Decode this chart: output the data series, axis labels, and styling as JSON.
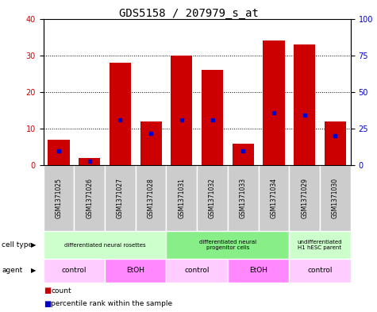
{
  "title": "GDS5158 / 207979_s_at",
  "samples": [
    "GSM1371025",
    "GSM1371026",
    "GSM1371027",
    "GSM1371028",
    "GSM1371031",
    "GSM1371032",
    "GSM1371033",
    "GSM1371034",
    "GSM1371029",
    "GSM1371030"
  ],
  "counts": [
    7,
    2,
    28,
    12,
    30,
    26,
    6,
    34,
    33,
    12
  ],
  "percentile_ranks": [
    10,
    3,
    31,
    22,
    31,
    31,
    10,
    36,
    34,
    20
  ],
  "ylim_left": [
    0,
    40
  ],
  "ylim_right": [
    0,
    100
  ],
  "left_ticks": [
    0,
    10,
    20,
    30,
    40
  ],
  "right_ticks": [
    0,
    25,
    50,
    75,
    100
  ],
  "cell_type_groups": [
    {
      "label": "differentiated neural rosettes",
      "start": 0,
      "end": 3,
      "color": "#ccffcc"
    },
    {
      "label": "differentiated neural\nprogenitor cells",
      "start": 4,
      "end": 7,
      "color": "#88ee88"
    },
    {
      "label": "undifferentiated\nH1 hESC parent",
      "start": 8,
      "end": 9,
      "color": "#ccffcc"
    }
  ],
  "agent_groups": [
    {
      "label": "control",
      "start": 0,
      "end": 1,
      "color": "#ffccff"
    },
    {
      "label": "EtOH",
      "start": 2,
      "end": 3,
      "color": "#ff88ff"
    },
    {
      "label": "control",
      "start": 4,
      "end": 5,
      "color": "#ffccff"
    },
    {
      "label": "EtOH",
      "start": 6,
      "end": 7,
      "color": "#ff88ff"
    },
    {
      "label": "control",
      "start": 8,
      "end": 9,
      "color": "#ffccff"
    }
  ],
  "bar_color": "#cc0000",
  "percentile_color": "#0000cc",
  "background_color": "#ffffff",
  "sample_bg_color": "#cccccc",
  "title_fontsize": 10,
  "tick_fontsize": 7,
  "left_tick_color": "#cc0000",
  "right_tick_color": "#0000cc"
}
